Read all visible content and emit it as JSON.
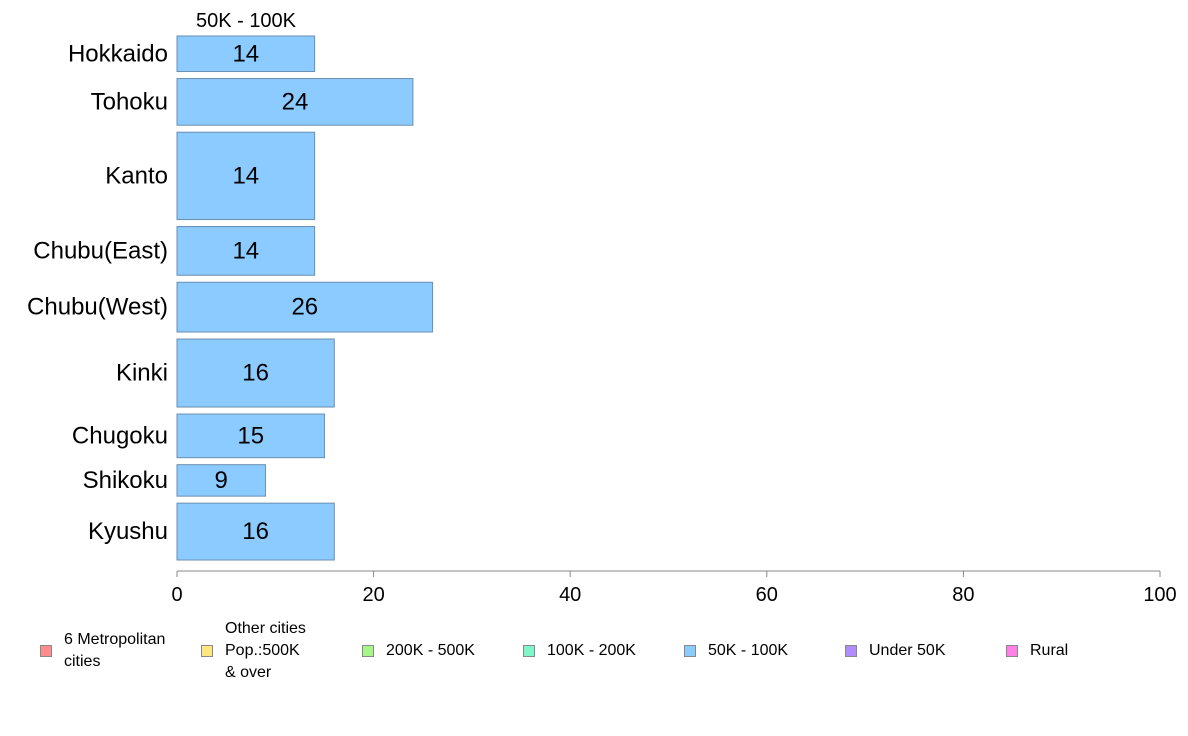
{
  "chart_data": {
    "type": "bar",
    "orientation": "horizontal",
    "panel_title": "50K - 100K",
    "categories": [
      "Hokkaido",
      "Tohoku",
      "Kanto",
      "Chubu(East)",
      "Chubu(West)",
      "Kinki",
      "Chugoku",
      "Shikoku",
      "Kyushu"
    ],
    "values": [
      14,
      24,
      14,
      14,
      26,
      16,
      15,
      9,
      16
    ],
    "bar_thickness_relative": [
      35,
      46,
      86,
      48,
      49,
      67,
      43,
      31,
      56
    ],
    "xlim": [
      0,
      100
    ],
    "xticks": [
      0,
      20,
      40,
      60,
      80,
      100
    ],
    "bar_color": "#8ccbff",
    "bar_border_color": "#6a8fb0",
    "grid": false,
    "legend_position": "bottom",
    "legend": [
      {
        "label": "6 Metropolitan\n cities",
        "color": "#ff8c8c"
      },
      {
        "label": "Other cities\nPop.:500K\n & over",
        "color": "#ffe680"
      },
      {
        "label": "200K - 500K",
        "color": "#a8f58c"
      },
      {
        "label": "100K - 200K",
        "color": "#80f5c8"
      },
      {
        "label": "50K - 100K",
        "color": "#8ccbff"
      },
      {
        "label": "Under 50K",
        "color": "#b08cff"
      },
      {
        "label": "Rural",
        "color": "#ff80e6"
      }
    ]
  }
}
